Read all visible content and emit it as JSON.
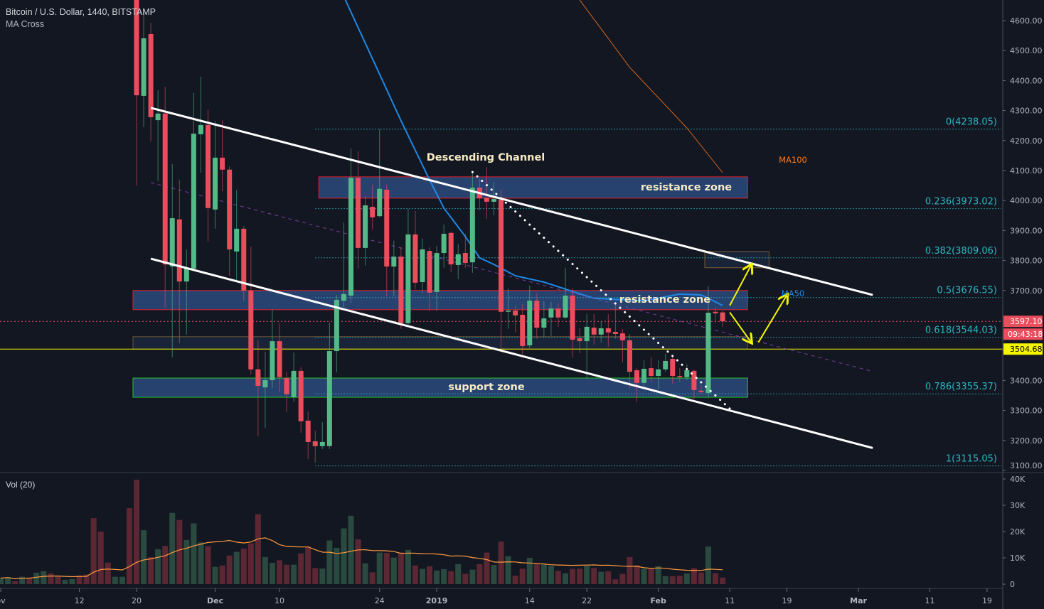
{
  "header": {
    "symbol_title": "Bitcoin / U.S. Dollar, 1440, BITSTAMP",
    "indicator": "MA Cross",
    "volume_indicator": "Vol (20)"
  },
  "colors": {
    "background": "#131722",
    "up": "#53b987",
    "down": "#eb4d5c",
    "volume_up": "#2b4a3f",
    "volume_down": "#5b2733",
    "volume_ma": "#ff9a3c",
    "ma50": "#1e88e5",
    "ma100": "#d3651c",
    "fib": "#2cb5c2",
    "channel": "#ffffff",
    "zone_fill": "#2d4a7e",
    "annotation_text": "#f7ebc3",
    "arrow": "#f5f500",
    "last_price": "#eb4d5c",
    "alert_line": "#f5f500"
  },
  "chart_data": {
    "type": "candlestick",
    "title": "Bitcoin / U.S. Dollar, 1440, BITSTAMP",
    "price_axis": {
      "range": [
        3100,
        4650
      ],
      "ticks": [
        4600,
        4500,
        4400,
        4300,
        4200,
        4100,
        4000,
        3900,
        3800,
        3700,
        3600,
        3500,
        3400,
        3300,
        3200,
        3100
      ]
    },
    "time_axis": {
      "ticks": [
        {
          "label": "ov",
          "date": "2018-11-01"
        },
        {
          "label": "12",
          "date": "2018-11-12"
        },
        {
          "label": "20",
          "date": "2018-11-20"
        },
        {
          "label": "Dec",
          "date": "2018-12-01"
        },
        {
          "label": "10",
          "date": "2018-12-10"
        },
        {
          "label": "24",
          "date": "2018-12-24"
        },
        {
          "label": "2019",
          "date": "2019-01-01"
        },
        {
          "label": "14",
          "date": "2019-01-14"
        },
        {
          "label": "22",
          "date": "2019-01-22"
        },
        {
          "label": "Feb",
          "date": "2019-02-01"
        },
        {
          "label": "11",
          "date": "2019-02-11"
        },
        {
          "label": "19",
          "date": "2019-02-19"
        },
        {
          "label": "Mar",
          "date": "2019-03-01"
        },
        {
          "label": "11",
          "date": "2019-03-11"
        },
        {
          "label": "19",
          "date": "2019-03-19"
        }
      ]
    },
    "candle_fields": [
      "date",
      "open",
      "high",
      "low",
      "close"
    ],
    "candles": [
      [
        "2018-11-20",
        4775,
        4860,
        4050,
        4351
      ],
      [
        "2018-11-21",
        4349,
        4629,
        4245,
        4541
      ],
      [
        "2018-11-22",
        4555,
        4593,
        4197,
        4278
      ],
      [
        "2018-11-23",
        4268,
        4368,
        4065,
        4290
      ],
      [
        "2018-11-24",
        4290,
        4380,
        3643,
        3787
      ],
      [
        "2018-11-25",
        3780,
        4122,
        3477,
        3941
      ],
      [
        "2018-11-26",
        3937,
        4069,
        3524,
        3730
      ],
      [
        "2018-11-27",
        3730,
        3837,
        3553,
        3773
      ],
      [
        "2018-11-28",
        3773,
        4359,
        3770,
        4223
      ],
      [
        "2018-11-29",
        4221,
        4413,
        4093,
        4252
      ],
      [
        "2018-11-30",
        4252,
        4302,
        3863,
        3975
      ],
      [
        "2018-12-01",
        3970,
        4266,
        3906,
        4143
      ],
      [
        "2018-12-02",
        4143,
        4268,
        4031,
        4103
      ],
      [
        "2018-12-03",
        4103,
        4114,
        3749,
        3837
      ],
      [
        "2018-12-04",
        3830,
        4036,
        3735,
        3906
      ],
      [
        "2018-12-05",
        3906,
        3915,
        3666,
        3700
      ],
      [
        "2018-12-06",
        3700,
        3847,
        3420,
        3437
      ],
      [
        "2018-12-07",
        3437,
        3534,
        3214,
        3382
      ],
      [
        "2018-12-08",
        3377,
        3496,
        3242,
        3401
      ],
      [
        "2018-12-09",
        3401,
        3636,
        3375,
        3531
      ],
      [
        "2018-12-10",
        3531,
        3591,
        3361,
        3411
      ],
      [
        "2018-12-11",
        3408,
        3429,
        3294,
        3354
      ],
      [
        "2018-12-12",
        3344,
        3493,
        3328,
        3432
      ],
      [
        "2018-12-13",
        3432,
        3444,
        3226,
        3264
      ],
      [
        "2018-12-14",
        3266,
        3297,
        3138,
        3195
      ],
      [
        "2018-12-15",
        3197,
        3233,
        3126,
        3181
      ],
      [
        "2018-12-16",
        3181,
        3261,
        3171,
        3195
      ],
      [
        "2018-12-17",
        3181,
        3593,
        3171,
        3498
      ],
      [
        "2018-12-18",
        3498,
        3685,
        3427,
        3669
      ],
      [
        "2018-12-19",
        3666,
        3927,
        3645,
        3688
      ],
      [
        "2018-12-20",
        3683,
        4174,
        3659,
        4076
      ],
      [
        "2018-12-21",
        4076,
        4164,
        3773,
        3842
      ],
      [
        "2018-12-22",
        3842,
        4013,
        3783,
        3984
      ],
      [
        "2018-12-23",
        3979,
        4053,
        3904,
        3944
      ],
      [
        "2018-12-24",
        3948,
        4238,
        3944,
        4039
      ],
      [
        "2018-12-25",
        4036,
        4053,
        3681,
        3780
      ],
      [
        "2018-12-26",
        3780,
        3866,
        3681,
        3813
      ],
      [
        "2018-12-27",
        3813,
        3844,
        3572,
        3591
      ],
      [
        "2018-12-28",
        3591,
        3972,
        3586,
        3887
      ],
      [
        "2018-12-29",
        3887,
        3965,
        3704,
        3726
      ],
      [
        "2018-12-30",
        3728,
        3873,
        3690,
        3837
      ],
      [
        "2018-12-31",
        3832,
        3844,
        3633,
        3693
      ],
      [
        "2019-01-01",
        3695,
        3849,
        3633,
        3825
      ],
      [
        "2019-01-02",
        3825,
        3920,
        3776,
        3889
      ],
      [
        "2019-01-03",
        3892,
        3896,
        3761,
        3787
      ],
      [
        "2019-01-04",
        3785,
        3854,
        3738,
        3821
      ],
      [
        "2019-01-05",
        3825,
        3889,
        3776,
        3792
      ],
      [
        "2019-01-06",
        3794,
        4093,
        3759,
        4043
      ],
      [
        "2019-01-07",
        4043,
        4072,
        3967,
        4008
      ],
      [
        "2019-01-08",
        4008,
        4112,
        3939,
        3996
      ],
      [
        "2019-01-09",
        3996,
        4062,
        3951,
        4005
      ],
      [
        "2019-01-10",
        4003,
        4036,
        3508,
        3629
      ],
      [
        "2019-01-11",
        3629,
        3707,
        3572,
        3633
      ],
      [
        "2019-01-12",
        3633,
        3650,
        3560,
        3617
      ],
      [
        "2019-01-13",
        3619,
        3655,
        3489,
        3515
      ],
      [
        "2019-01-14",
        3517,
        3716,
        3508,
        3666
      ],
      [
        "2019-01-15",
        3666,
        3690,
        3539,
        3576
      ],
      [
        "2019-01-16",
        3576,
        3664,
        3546,
        3607
      ],
      [
        "2019-01-17",
        3610,
        3662,
        3548,
        3640
      ],
      [
        "2019-01-18",
        3640,
        3657,
        3579,
        3610
      ],
      [
        "2019-01-19",
        3610,
        3776,
        3605,
        3683
      ],
      [
        "2019-01-20",
        3683,
        3707,
        3475,
        3536
      ],
      [
        "2019-01-21",
        3541,
        3574,
        3491,
        3531
      ],
      [
        "2019-01-22",
        3531,
        3621,
        3406,
        3579
      ],
      [
        "2019-01-23",
        3576,
        3621,
        3520,
        3553
      ],
      [
        "2019-01-24",
        3553,
        3598,
        3527,
        3574
      ],
      [
        "2019-01-25",
        3574,
        3621,
        3512,
        3560
      ],
      [
        "2019-01-26",
        3562,
        3662,
        3539,
        3555
      ],
      [
        "2019-01-27",
        3557,
        3572,
        3460,
        3534
      ],
      [
        "2019-01-28",
        3534,
        3555,
        3373,
        3429
      ],
      [
        "2019-01-29",
        3434,
        3441,
        3328,
        3392
      ],
      [
        "2019-01-30",
        3392,
        3467,
        3382,
        3439
      ],
      [
        "2019-01-31",
        3441,
        3477,
        3396,
        3415
      ],
      [
        "2019-02-01",
        3415,
        3467,
        3370,
        3437
      ],
      [
        "2019-02-02",
        3437,
        3489,
        3429,
        3465
      ],
      [
        "2019-02-03",
        3472,
        3482,
        3389,
        3415
      ],
      [
        "2019-02-04",
        3415,
        3441,
        3396,
        3411
      ],
      [
        "2019-02-05",
        3411,
        3453,
        3401,
        3434
      ],
      [
        "2019-02-06",
        3432,
        3437,
        3337,
        3368
      ],
      [
        "2019-02-07",
        3366,
        3384,
        3354,
        3361
      ],
      [
        "2019-02-08",
        3358,
        3714,
        3342,
        3626
      ],
      [
        "2019-02-09",
        3629,
        3643,
        3593,
        3624
      ],
      [
        "2019-02-10",
        3627,
        3633,
        3579,
        3597.1
      ]
    ],
    "volume_unit": "K",
    "volume_axis": {
      "ticks": [
        {
          "label": "40K",
          "value": 40
        },
        {
          "label": "30K",
          "value": 30
        },
        {
          "label": "20K",
          "value": 20
        },
        {
          "label": "10K",
          "value": 10
        },
        {
          "label": "0",
          "value": 0
        }
      ]
    },
    "volume_start_date": "2018-11-01",
    "volume": [
      2.3,
      2.7,
      1.1,
      2.8,
      2.5,
      4.3,
      4.9,
      4.1,
      3.1,
      1.6,
      1.9,
      3.4,
      3.7,
      25.1,
      20.0,
      8.2,
      2.8,
      2.8,
      28.9,
      39.7,
      20.5,
      10.3,
      13.3,
      14.5,
      27.1,
      24.4,
      16.8,
      23.1,
      15.9,
      14.4,
      6.6,
      7.1,
      10.9,
      12.3,
      13.5,
      15.5,
      26.6,
      10.3,
      8.1,
      9.1,
      7.4,
      7.4,
      11.7,
      14.3,
      6.1,
      5.9,
      16.6,
      13.8,
      21.2,
      26.0,
      17.0,
      7.9,
      4.5,
      12.0,
      11.9,
      10.1,
      12.1,
      13.0,
      7.1,
      5.8,
      6.8,
      5.2,
      5.7,
      4.9,
      7.6,
      3.9,
      5.5,
      7.6,
      12.0,
      7.3,
      16.2,
      10.6,
      3.2,
      5.9,
      10.0,
      7.7,
      7.7,
      7.0,
      5.0,
      4.1,
      5.8,
      5.9,
      7.0,
      6.1,
      4.7,
      4.9,
      1.8,
      3.9,
      10.3,
      7.2,
      5.8,
      5.9,
      6.8,
      3.0,
      3.0,
      3.2,
      4.1,
      6.1,
      4.4,
      14.3,
      4.1,
      2.5
    ],
    "volume_up_before_candles": [
      true,
      true,
      false,
      true,
      false,
      true,
      true,
      false,
      false,
      true,
      true,
      false,
      false,
      false,
      false,
      false,
      true,
      true,
      false
    ],
    "volume_ma_length": 20,
    "ma50": {
      "label": "MA50",
      "points": [
        [
          "2018-12-18",
          4720
        ],
        [
          "2018-12-19",
          4680
        ],
        [
          "2018-12-27",
          4266
        ],
        [
          "2018-12-31",
          4069
        ],
        [
          "2019-01-02",
          3975
        ],
        [
          "2019-01-05",
          3880
        ],
        [
          "2019-01-07",
          3809
        ],
        [
          "2019-01-09",
          3787
        ],
        [
          "2019-01-12",
          3749
        ],
        [
          "2019-01-16",
          3728
        ],
        [
          "2019-01-20",
          3697
        ],
        [
          "2019-01-23",
          3674
        ],
        [
          "2019-01-27",
          3669
        ],
        [
          "2019-01-30",
          3666
        ],
        [
          "2019-02-04",
          3688
        ],
        [
          "2019-02-07",
          3685
        ],
        [
          "2019-02-08",
          3674
        ],
        [
          "2019-02-10",
          3650
        ]
      ]
    },
    "ma100": {
      "label": "MA100",
      "points": [
        [
          "2019-01-21",
          4669
        ],
        [
          "2019-01-28",
          4444
        ],
        [
          "2019-02-05",
          4242
        ],
        [
          "2019-02-10",
          4093
        ]
      ]
    },
    "fib_levels": [
      {
        "label": "0(4238.05)",
        "price": 4238.05
      },
      {
        "label": "0.236(3973.02)",
        "price": 3973.02
      },
      {
        "label": "0.382(3809.06)",
        "price": 3809.06
      },
      {
        "label": "0.5(3676.55)",
        "price": 3676.55
      },
      {
        "label": "0.618(3544.03)",
        "price": 3544.03
      },
      {
        "label": "0.786(3355.37)",
        "price": 3355.37
      },
      {
        "label": "1(3115.05)",
        "price": 3115.05
      }
    ],
    "fib_start_date": "2018-12-15",
    "channel": {
      "label": "Descending Channel",
      "upper": [
        [
          "2018-11-22",
          4309
        ],
        [
          "2019-03-03",
          3685
        ]
      ],
      "lower": [
        [
          "2018-11-22",
          3806
        ],
        [
          "2019-03-03",
          3175
        ]
      ],
      "middle": [
        [
          "2018-11-22",
          4060
        ],
        [
          "2019-03-03",
          3430
        ]
      ]
    },
    "trendline_dotted": [
      [
        "2019-01-06",
        4095
      ],
      [
        "2019-02-11",
        3306
      ]
    ],
    "zones": [
      {
        "label": "resistance zone",
        "from": "2018-12-16",
        "to": "2019-02-13",
        "top": 4079,
        "bottom": 4008,
        "border": "#e0202c"
      },
      {
        "label": "resistance zone",
        "from": "2018-11-20",
        "to": "2019-02-13",
        "top": 3700,
        "bottom": 3636,
        "border": "#e0202c"
      },
      {
        "label": "",
        "from": "2018-11-20",
        "to": "2019-02-13",
        "top": 3546,
        "bottom": 3505,
        "border": "#6b5435"
      },
      {
        "label": "support zone",
        "from": "2018-11-20",
        "to": "2019-02-13",
        "top": 3408,
        "bottom": 3344,
        "border": "#22c622"
      },
      {
        "label": "",
        "from": "2019-02-08",
        "to": "2019-02-16",
        "top": 3830,
        "bottom": 3776,
        "border": "#7a5a30"
      }
    ],
    "arrows": [
      [
        [
          "2019-02-11",
          3650
        ],
        [
          "2019-02-14",
          3785
        ]
      ],
      [
        [
          "2019-02-11",
          3627
        ],
        [
          "2019-02-14",
          3527
        ]
      ],
      [
        [
          "2019-02-15",
          3527
        ],
        [
          "2019-02-19",
          3685
        ]
      ]
    ],
    "last_price": {
      "value": "3597.10",
      "price": 3597.1,
      "countdown": "09:43:18"
    },
    "alert_line": {
      "value": "3504.68",
      "price": 3504.68
    }
  }
}
